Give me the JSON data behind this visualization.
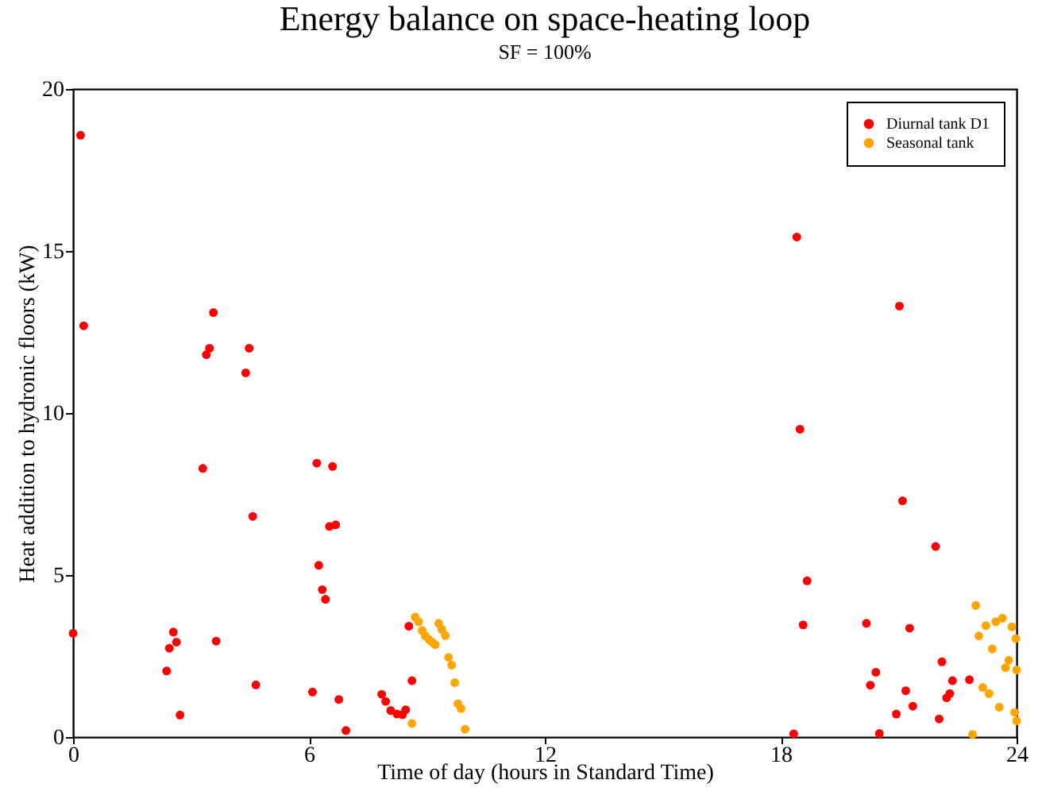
{
  "chart_data": {
    "type": "scatter",
    "title": "Energy balance on space-heating loop",
    "subtitle": "SF = 100%",
    "xlabel": "Time of day (hours in Standard Time)",
    "ylabel": "Heat addition to hydronic floors (kW)",
    "xlim": [
      0,
      24
    ],
    "xticks": [
      0,
      6,
      12,
      18,
      24
    ],
    "ylim": [
      0,
      20
    ],
    "yticks": [
      0,
      5,
      10,
      15,
      20
    ],
    "grid": false,
    "legend": "top right",
    "marker": "circle",
    "series": [
      {
        "name": "Diurnal tank D1",
        "color": "#ff0000",
        "x": [
          0,
          0.19,
          0.27,
          2.38,
          2.45,
          2.55,
          2.63,
          2.72,
          3.3,
          3.39,
          3.47,
          3.57,
          3.64,
          4.39,
          4.48,
          4.57,
          4.65,
          6.09,
          6.2,
          6.25,
          6.34,
          6.42,
          6.52,
          6.6,
          6.68,
          6.76,
          6.94,
          7.85,
          7.95,
          8.08,
          8.24,
          8.38,
          8.46,
          8.54,
          8.62,
          18.33,
          18.41,
          18.49,
          18.57,
          18.67,
          20.18,
          20.28,
          20.42,
          20.51,
          20.94,
          21.02,
          21.1,
          21.18,
          21.28,
          21.36,
          21.94,
          22.03,
          22.1,
          22.22,
          22.3,
          22.37,
          22.8
        ],
        "values": [
          3.2,
          18.57,
          12.69,
          2.04,
          2.74,
          3.24,
          2.93,
          0.68,
          8.29,
          11.8,
          12.0,
          13.1,
          2.96,
          11.24,
          12.0,
          6.81,
          1.61,
          1.39,
          8.45,
          5.3,
          4.55,
          4.25,
          6.5,
          8.35,
          6.55,
          1.16,
          0.2,
          1.32,
          1.1,
          0.82,
          0.71,
          0.69,
          0.84,
          3.42,
          1.74,
          0.1,
          15.43,
          9.5,
          3.46,
          4.82,
          3.51,
          1.6,
          2.0,
          0.11,
          0.71,
          13.3,
          7.29,
          1.43,
          3.36,
          0.95,
          5.88,
          0.56,
          2.32,
          1.21,
          1.34,
          1.74,
          1.77
        ]
      },
      {
        "name": "Seasonal tank",
        "color": "#ffa500",
        "x": [
          8.62,
          8.7,
          8.79,
          8.88,
          8.96,
          9.05,
          9.13,
          9.21,
          9.3,
          9.38,
          9.47,
          9.55,
          9.63,
          9.71,
          9.79,
          9.87,
          9.97,
          22.88,
          22.96,
          23.04,
          23.14,
          23.22,
          23.3,
          23.38,
          23.47,
          23.56,
          23.64,
          23.72,
          23.8,
          23.88,
          23.95,
          23.98,
          24.0,
          24.0
        ],
        "values": [
          0.42,
          3.7,
          3.56,
          3.29,
          3.12,
          3.01,
          2.93,
          2.85,
          3.51,
          3.32,
          3.13,
          2.46,
          2.22,
          1.68,
          1.03,
          0.88,
          0.24,
          0.08,
          4.06,
          3.12,
          1.53,
          3.44,
          1.34,
          2.72,
          3.56,
          0.92,
          3.67,
          2.14,
          2.37,
          3.4,
          0.76,
          3.04,
          2.07,
          0.5
        ]
      }
    ]
  }
}
